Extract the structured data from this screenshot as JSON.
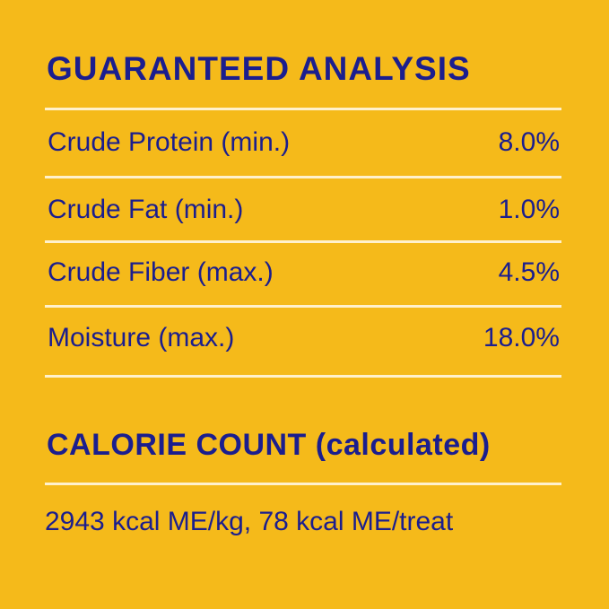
{
  "colors": {
    "background": "#F5BA1A",
    "text": "#1B1E8E",
    "divider": "#FFF1CC"
  },
  "guaranteed_analysis": {
    "title": "GUARANTEED ANALYSIS",
    "rows": [
      {
        "label": "Crude Protein (min.)",
        "value": "8.0%"
      },
      {
        "label": "Crude Fat (min.)",
        "value": "1.0%"
      },
      {
        "label": "Crude Fiber (max.)",
        "value": "4.5%"
      },
      {
        "label": "Moisture (max.)",
        "value": "18.0%"
      }
    ]
  },
  "calorie_count": {
    "title": "CALORIE COUNT (calculated)",
    "text": "2943 kcal ME/kg, 78 kcal ME/treat"
  }
}
